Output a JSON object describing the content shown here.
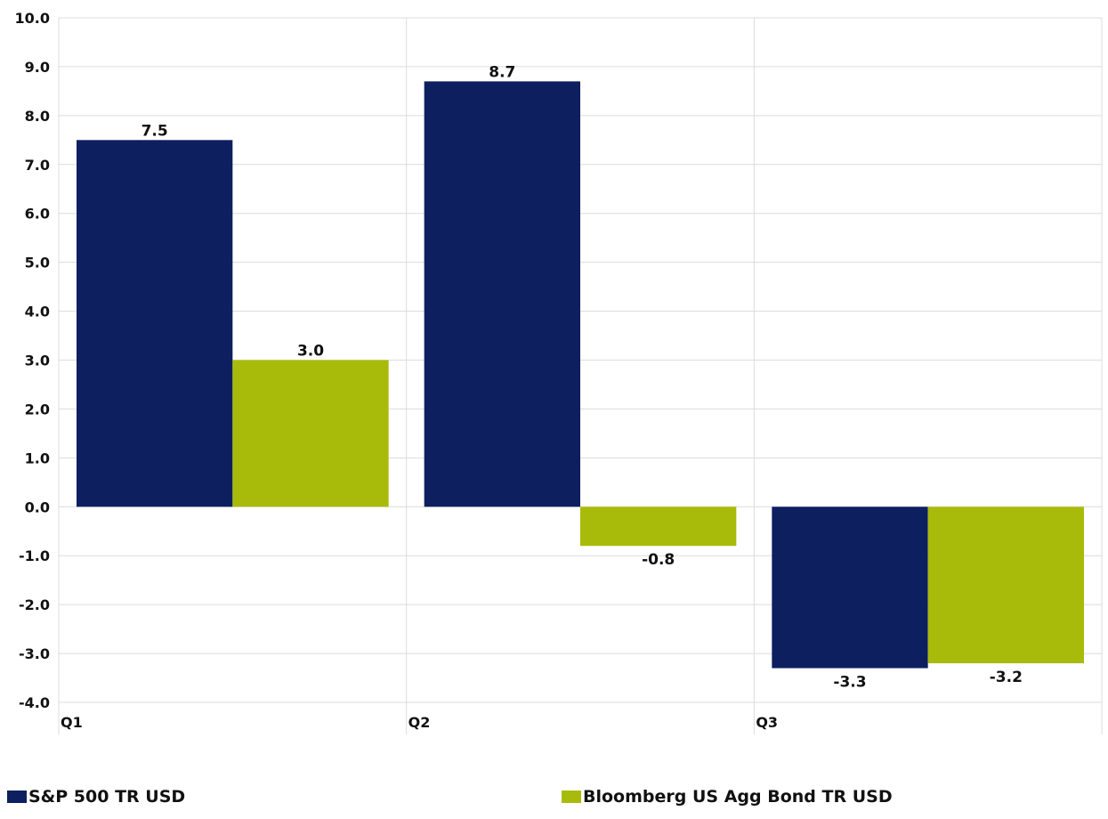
{
  "chart_data": {
    "type": "bar",
    "title": "",
    "xlabel": "",
    "ylabel": "",
    "categories": [
      "Q1",
      "Q2",
      "Q3"
    ],
    "ylim": [
      -4.0,
      10.0
    ],
    "ytick_step": 1.0,
    "yticks": [
      "10.0",
      "9.0",
      "8.0",
      "7.0",
      "6.0",
      "5.0",
      "4.0",
      "3.0",
      "2.0",
      "1.0",
      "0.0",
      "-1.0",
      "-2.0",
      "-3.0",
      "-4.0"
    ],
    "grid": true,
    "legend_position": "bottom",
    "series": [
      {
        "name": "S&P 500 TR USD",
        "color": "#0d1f5f",
        "values": [
          7.5,
          8.7,
          -3.3
        ],
        "labels": [
          "7.5",
          "8.7",
          "-3.3"
        ]
      },
      {
        "name": "Bloomberg US Agg Bond TR USD",
        "color": "#a8bb0a",
        "values": [
          3.0,
          -0.8,
          -3.2
        ],
        "labels": [
          "3.0",
          "-0.8",
          "-3.2"
        ]
      }
    ]
  }
}
